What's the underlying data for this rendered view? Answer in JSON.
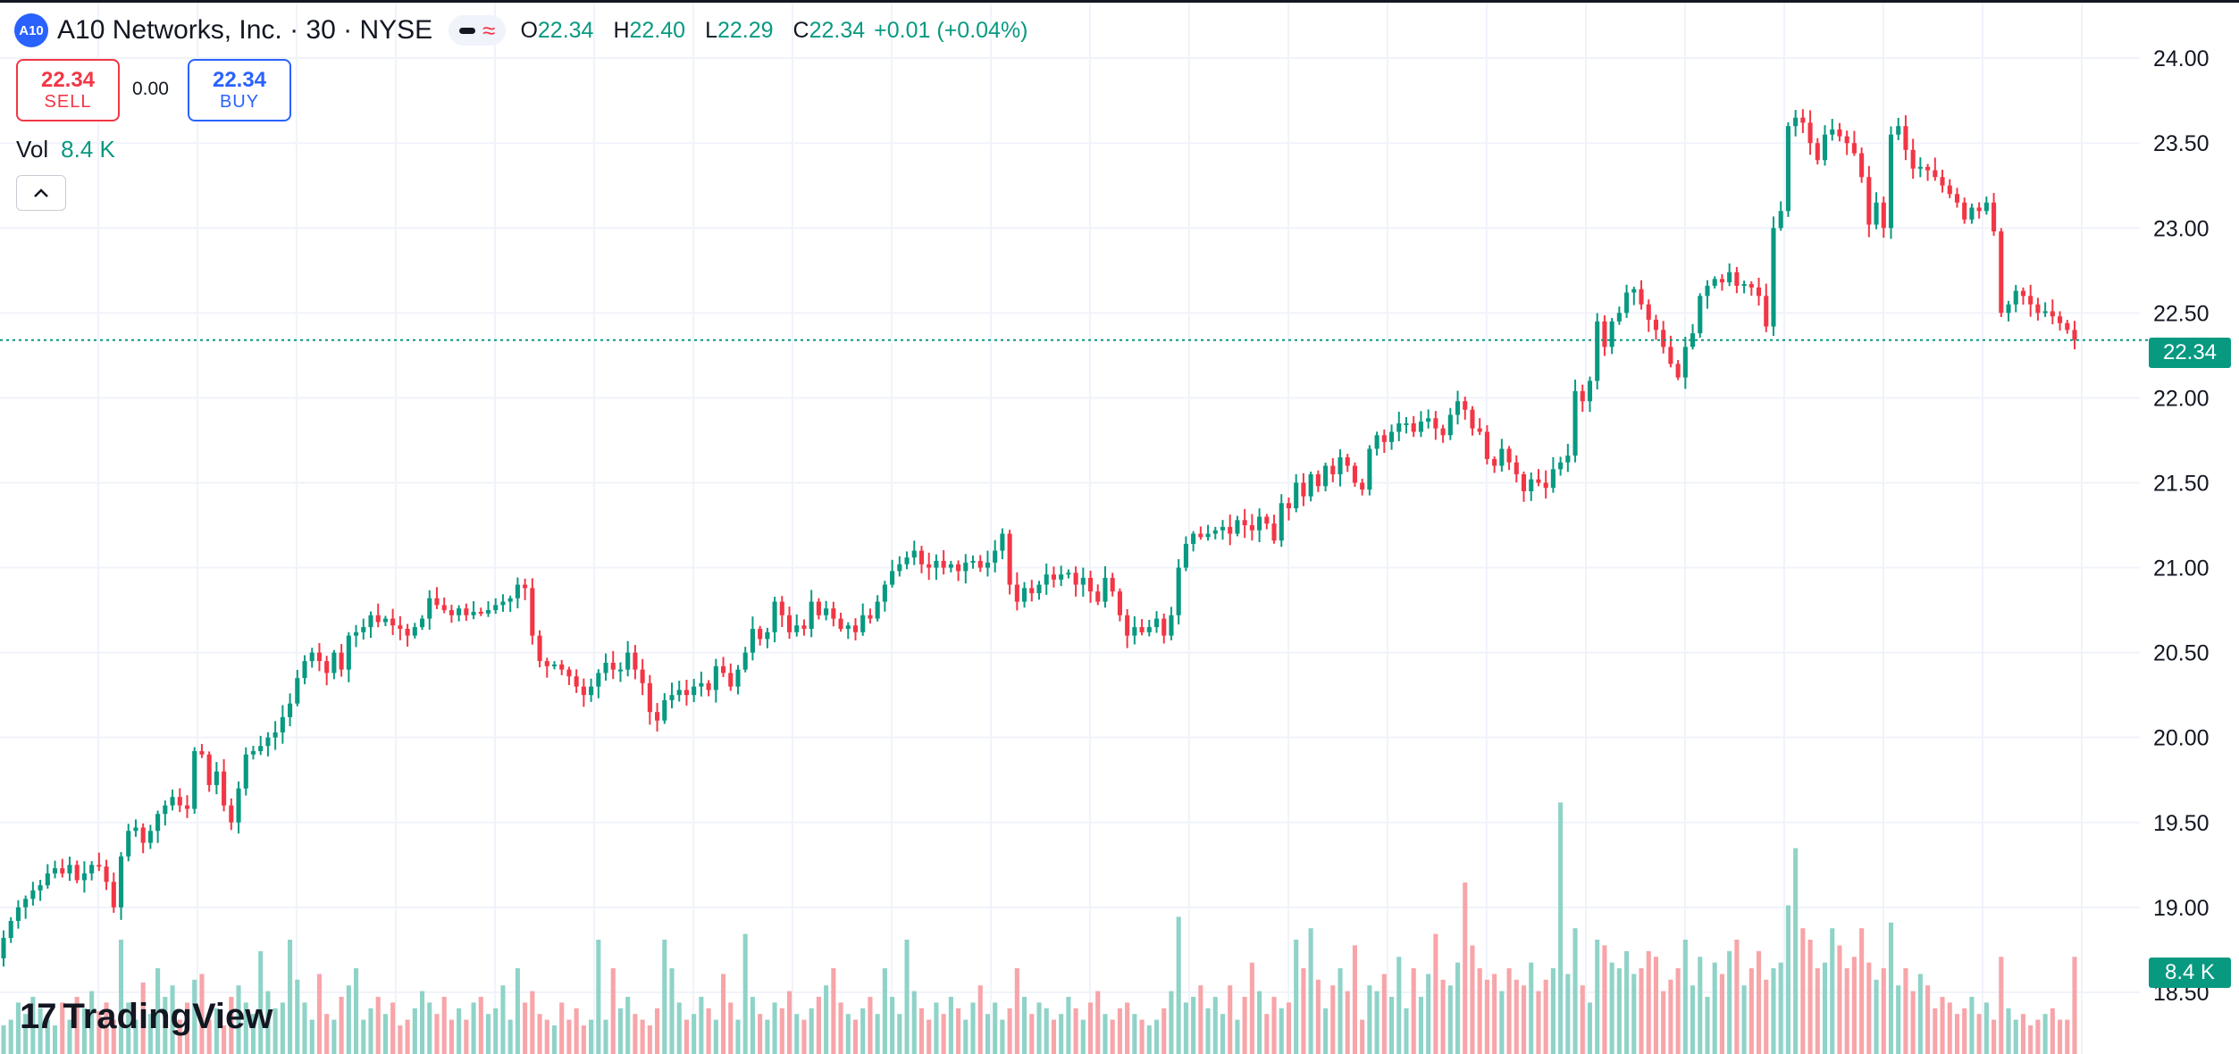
{
  "header": {
    "logo_text": "A10",
    "symbol_title": "A10 Networks, Inc. · 30 · NYSE",
    "pill_icon": "approx-wave-icon",
    "ohlc": [
      {
        "key": "O",
        "value": "22.34"
      },
      {
        "key": "H",
        "value": "22.40"
      },
      {
        "key": "L",
        "value": "22.29"
      },
      {
        "key": "C",
        "value": "22.34"
      }
    ],
    "change": "+0.01 (+0.04%)"
  },
  "trade": {
    "sell_price": "22.34",
    "sell_label": "SELL",
    "spread": "0.00",
    "buy_price": "22.34",
    "buy_label": "BUY"
  },
  "volume_legend": {
    "label": "Vol",
    "value": "8.4 K"
  },
  "tags": {
    "last_price": "22.34",
    "last_volume": "8.4 K"
  },
  "branding": {
    "logo_text": "TradingView"
  },
  "colors": {
    "up": "#089981",
    "down": "#f23645",
    "vol_up": "#8fd3c8",
    "vol_down": "#f7a5a9",
    "grid": "#f0f3fa"
  },
  "chart_data": {
    "type": "candlestick",
    "symbol": "A10 Networks, Inc.",
    "interval": "30",
    "exchange": "NYSE",
    "ylim": [
      18.41,
      24.29
    ],
    "y_ticks": [
      "24.00",
      "23.50",
      "23.00",
      "22.50",
      "22.00",
      "21.50",
      "21.00",
      "20.50",
      "20.00",
      "19.50",
      "19.00",
      "18.50"
    ],
    "last_price": 22.34,
    "grid": true,
    "ohlc_path": [
      18.82,
      18.92,
      19.0,
      19.05,
      19.1,
      19.13,
      19.2,
      19.23,
      19.2,
      19.25,
      19.16,
      19.2,
      19.25,
      19.24,
      19.15,
      19.0,
      19.3,
      19.45,
      19.47,
      19.38,
      19.45,
      19.55,
      19.6,
      19.65,
      19.6,
      19.58,
      19.92,
      19.9,
      19.72,
      19.8,
      19.6,
      19.5,
      19.7,
      19.9,
      19.92,
      19.95,
      20.0,
      20.03,
      20.12,
      20.2,
      20.35,
      20.45,
      20.5,
      20.45,
      20.38,
      20.5,
      20.4,
      20.6,
      20.62,
      20.65,
      20.72,
      20.68,
      20.7,
      20.66,
      20.64,
      20.6,
      20.65,
      20.7,
      20.82,
      20.78,
      20.75,
      20.72,
      20.76,
      20.72,
      20.74,
      20.73,
      20.75,
      20.78,
      20.8,
      20.82,
      20.9,
      20.88,
      20.6,
      20.45,
      20.42,
      20.43,
      20.4,
      20.36,
      20.3,
      20.25,
      20.3,
      20.38,
      20.44,
      20.4,
      20.4,
      20.5,
      20.4,
      20.32,
      20.15,
      20.1,
      20.22,
      20.25,
      20.28,
      20.25,
      20.3,
      20.32,
      20.28,
      20.42,
      20.38,
      20.3,
      20.4,
      20.5,
      20.64,
      20.58,
      20.62,
      20.8,
      20.72,
      20.62,
      20.66,
      20.64,
      20.8,
      20.72,
      20.76,
      20.7,
      20.64,
      20.66,
      20.62,
      20.72,
      20.7,
      20.8,
      20.9,
      20.98,
      21.02,
      21.06,
      21.1,
      21.02,
      21.0,
      21.04,
      21.0,
      21.02,
      20.98,
      21.03,
      21.04,
      21.0,
      21.03,
      21.1,
      21.2,
      20.9,
      20.8,
      20.88,
      20.85,
      20.9,
      20.96,
      20.93,
      20.96,
      20.97,
      20.9,
      20.94,
      20.86,
      20.8,
      20.94,
      20.86,
      20.72,
      20.6,
      20.65,
      20.62,
      20.65,
      20.7,
      20.6,
      20.72,
      21.0,
      21.14,
      21.2,
      21.18,
      21.2,
      21.22,
      21.24,
      21.2,
      21.28,
      21.25,
      21.22,
      21.3,
      21.26,
      21.16,
      21.38,
      21.35,
      21.5,
      21.42,
      21.55,
      21.48,
      21.6,
      21.55,
      21.65,
      21.6,
      21.5,
      21.46,
      21.7,
      21.78,
      21.74,
      21.8,
      21.85,
      21.85,
      21.8,
      21.86,
      21.88,
      21.82,
      21.78,
      21.9,
      21.98,
      21.93,
      21.82,
      21.8,
      21.64,
      21.6,
      21.7,
      21.62,
      21.55,
      21.45,
      21.52,
      21.5,
      21.47,
      21.58,
      21.62,
      21.66,
      22.04,
      21.98,
      22.1,
      22.45,
      22.3,
      22.45,
      22.5,
      22.62,
      22.64,
      22.55,
      22.46,
      22.4,
      22.3,
      22.2,
      22.12,
      22.3,
      22.38,
      22.6,
      22.66,
      22.7,
      22.68,
      22.74,
      22.66,
      22.67,
      22.65,
      22.6,
      22.42,
      23.0,
      23.1,
      23.6,
      23.65,
      23.62,
      23.5,
      23.4,
      23.55,
      23.58,
      23.54,
      23.5,
      23.44,
      23.3,
      23.02,
      23.15,
      23.0,
      23.55,
      23.6,
      23.46,
      23.35,
      23.36,
      23.34,
      23.3,
      23.25,
      23.2,
      23.15,
      23.05,
      23.12,
      23.1,
      23.15,
      22.98,
      22.5,
      22.55,
      22.63,
      22.6,
      22.55,
      22.5,
      22.51,
      22.48,
      22.44,
      22.4,
      22.34
    ],
    "volume_scale": [
      0,
      1
    ],
    "volume": [
      0.1,
      0.12,
      0.18,
      0.14,
      0.2,
      0.16,
      0.12,
      0.1,
      0.18,
      0.12,
      0.2,
      0.16,
      0.22,
      0.15,
      0.18,
      0.12,
      0.4,
      0.18,
      0.12,
      0.25,
      0.14,
      0.3,
      0.2,
      0.24,
      0.12,
      0.18,
      0.26,
      0.28,
      0.12,
      0.16,
      0.1,
      0.2,
      0.24,
      0.18,
      0.14,
      0.36,
      0.22,
      0.16,
      0.18,
      0.4,
      0.26,
      0.18,
      0.12,
      0.28,
      0.14,
      0.12,
      0.2,
      0.24,
      0.3,
      0.12,
      0.16,
      0.2,
      0.14,
      0.18,
      0.1,
      0.12,
      0.16,
      0.22,
      0.18,
      0.14,
      0.2,
      0.12,
      0.16,
      0.12,
      0.18,
      0.2,
      0.14,
      0.16,
      0.24,
      0.12,
      0.3,
      0.18,
      0.22,
      0.14,
      0.12,
      0.1,
      0.18,
      0.12,
      0.16,
      0.1,
      0.12,
      0.4,
      0.12,
      0.3,
      0.16,
      0.2,
      0.14,
      0.12,
      0.1,
      0.16,
      0.4,
      0.3,
      0.18,
      0.12,
      0.14,
      0.2,
      0.16,
      0.12,
      0.28,
      0.18,
      0.12,
      0.42,
      0.2,
      0.14,
      0.12,
      0.18,
      0.16,
      0.22,
      0.14,
      0.12,
      0.16,
      0.2,
      0.24,
      0.3,
      0.18,
      0.14,
      0.12,
      0.16,
      0.2,
      0.14,
      0.3,
      0.2,
      0.14,
      0.4,
      0.22,
      0.16,
      0.12,
      0.18,
      0.14,
      0.2,
      0.16,
      0.12,
      0.18,
      0.24,
      0.14,
      0.18,
      0.12,
      0.16,
      0.3,
      0.2,
      0.14,
      0.18,
      0.16,
      0.12,
      0.14,
      0.2,
      0.16,
      0.12,
      0.18,
      0.22,
      0.14,
      0.12,
      0.16,
      0.18,
      0.14,
      0.12,
      0.1,
      0.12,
      0.16,
      0.22,
      0.48,
      0.18,
      0.2,
      0.24,
      0.16,
      0.2,
      0.14,
      0.24,
      0.12,
      0.2,
      0.32,
      0.22,
      0.14,
      0.2,
      0.16,
      0.18,
      0.4,
      0.3,
      0.44,
      0.26,
      0.16,
      0.24,
      0.3,
      0.22,
      0.38,
      0.12,
      0.24,
      0.22,
      0.28,
      0.2,
      0.34,
      0.16,
      0.3,
      0.2,
      0.28,
      0.42,
      0.26,
      0.24,
      0.32,
      0.6,
      0.38,
      0.3,
      0.26,
      0.28,
      0.22,
      0.3,
      0.26,
      0.24,
      0.32,
      0.22,
      0.26,
      0.3,
      0.88,
      0.28,
      0.44,
      0.24,
      0.18,
      0.4,
      0.38,
      0.32,
      0.3,
      0.36,
      0.28,
      0.3,
      0.36,
      0.34,
      0.22,
      0.26,
      0.3,
      0.4,
      0.24,
      0.34,
      0.2,
      0.32,
      0.28,
      0.36,
      0.4,
      0.24,
      0.3,
      0.36,
      0.26,
      0.3,
      0.32,
      0.52,
      0.72,
      0.44,
      0.4,
      0.3,
      0.32,
      0.44,
      0.38,
      0.3,
      0.34,
      0.44,
      0.32,
      0.26,
      0.3,
      0.46,
      0.24,
      0.3,
      0.22,
      0.28,
      0.24,
      0.16,
      0.2,
      0.18,
      0.14,
      0.16,
      0.2,
      0.14,
      0.18,
      0.12,
      0.34,
      0.16,
      0.12,
      0.14,
      0.1,
      0.12,
      0.14,
      0.16,
      0.12,
      0.12,
      0.34
    ],
    "volume_last": "8.4 K"
  }
}
